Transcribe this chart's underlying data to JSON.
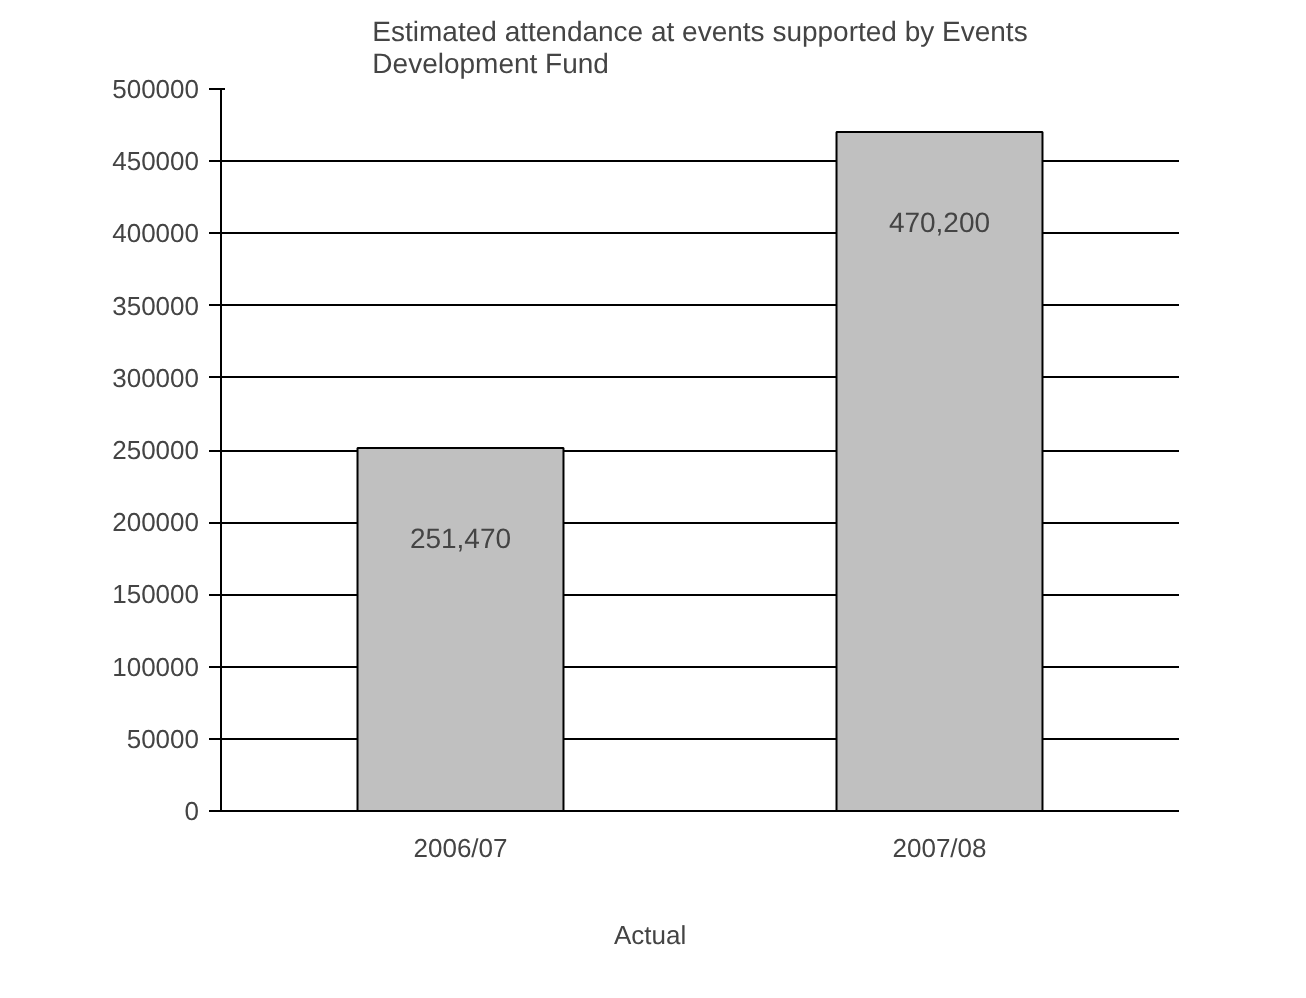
{
  "chart_data": {
    "type": "bar",
    "title": "Estimated attendance at events supported by Events Development Fund",
    "categories": [
      "2006/07",
      "2007/08"
    ],
    "series": [
      {
        "name": "Actual",
        "color": "#c0c0c0",
        "values": [
          251470,
          470200
        ],
        "value_labels": [
          "251,470",
          "470,200"
        ]
      }
    ],
    "ylim": [
      0,
      500000
    ],
    "yticks": [
      0,
      50000,
      100000,
      150000,
      200000,
      250000,
      300000,
      350000,
      400000,
      450000,
      500000
    ],
    "grid": "y",
    "legend": "bottom"
  }
}
